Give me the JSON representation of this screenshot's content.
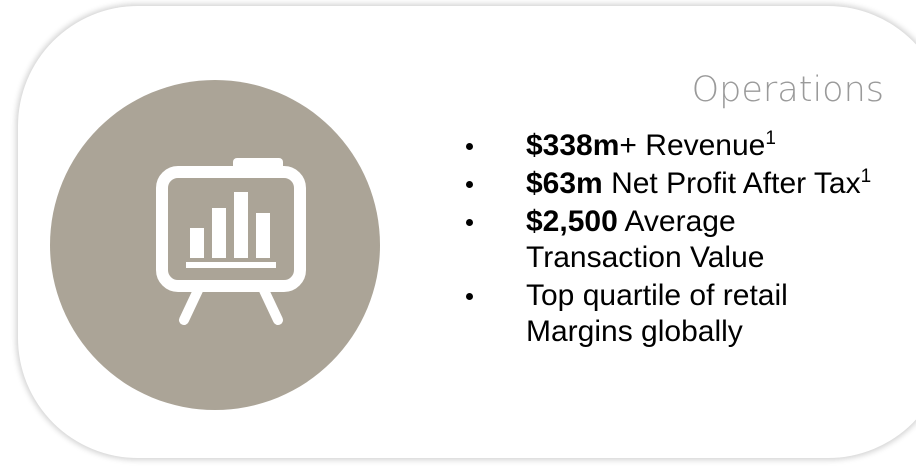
{
  "heading": "Operations",
  "items": [
    {
      "bold": "$338m",
      "text": "+ Revenue",
      "sup": "1"
    },
    {
      "bold": "$63m",
      "text": " Net Profit After Tax",
      "sup": "1"
    },
    {
      "bold": "$2,500",
      "text": " Average Transaction Value"
    },
    {
      "text": "Top quartile of retail Margins globally"
    }
  ]
}
